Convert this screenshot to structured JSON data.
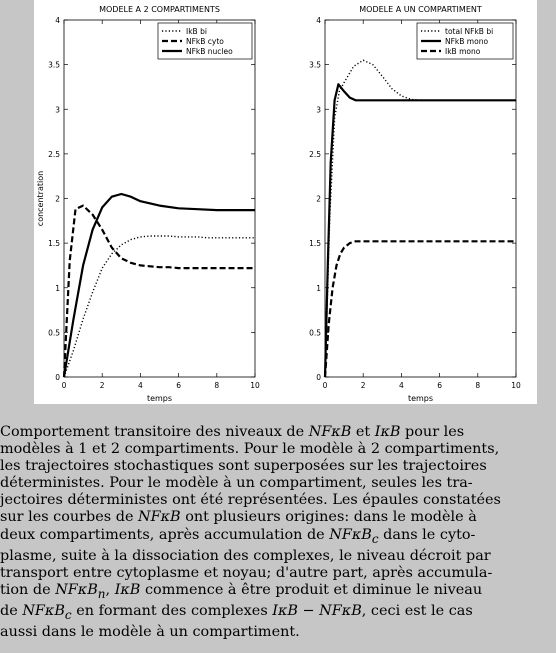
{
  "figure": {
    "panels": [
      {
        "title": "MODELE A 2 COMPARTIMENTS",
        "xlabel": "temps",
        "ylabel": "concentration",
        "legend": [
          "IkB bi",
          "NFkB cyto",
          "NFkB nucleo"
        ],
        "xticks": [
          "0",
          "2",
          "4",
          "6",
          "8",
          "10"
        ],
        "yticks": [
          "0",
          "0.5",
          "1",
          "1.5",
          "2",
          "2.5",
          "3",
          "3.5",
          "4"
        ]
      },
      {
        "title": "MODELE A UN COMPARTIMENT",
        "xlabel": "temps",
        "legend": [
          "total NFkB bi",
          "NFkB mono",
          "IkB mono"
        ],
        "xticks": [
          "0",
          "2",
          "4",
          "6",
          "8",
          "10"
        ],
        "yticks": [
          "0",
          "0.5",
          "1",
          "1.5",
          "2",
          "2.5",
          "3",
          "3.5",
          "4"
        ]
      }
    ]
  },
  "chart_data": [
    {
      "type": "line",
      "title": "MODELE A 2 COMPARTIMENTS",
      "xlabel": "temps",
      "ylabel": "concentration",
      "xlim": [
        0,
        10
      ],
      "ylim": [
        0,
        4
      ],
      "legend_position": "top-right",
      "series": [
        {
          "name": "IkB bi",
          "style": "dotted",
          "x": [
            0,
            0.5,
            1,
            1.5,
            2,
            2.5,
            3,
            3.5,
            4,
            4.5,
            5,
            5.5,
            6,
            6.5,
            7,
            7.5,
            8,
            8.5,
            9,
            9.5,
            10
          ],
          "y": [
            0,
            0.3,
            0.65,
            0.95,
            1.22,
            1.38,
            1.48,
            1.54,
            1.57,
            1.58,
            1.58,
            1.58,
            1.57,
            1.57,
            1.57,
            1.56,
            1.56,
            1.56,
            1.56,
            1.56,
            1.56
          ]
        },
        {
          "name": "NFkB cyto",
          "style": "dashed",
          "x": [
            0,
            0.3,
            0.6,
            1,
            1.5,
            2,
            2.5,
            3,
            3.5,
            4,
            4.5,
            5,
            5.5,
            6,
            7,
            8,
            9,
            10
          ],
          "y": [
            0,
            1.3,
            1.88,
            1.92,
            1.82,
            1.65,
            1.45,
            1.33,
            1.28,
            1.25,
            1.24,
            1.23,
            1.23,
            1.22,
            1.22,
            1.22,
            1.22,
            1.22
          ]
        },
        {
          "name": "NFkB nucleo",
          "style": "solid",
          "x": [
            0,
            0.5,
            1,
            1.5,
            2,
            2.5,
            3,
            3.5,
            4,
            5,
            6,
            7,
            8,
            9,
            10
          ],
          "y": [
            0,
            0.65,
            1.25,
            1.65,
            1.9,
            2.02,
            2.05,
            2.02,
            1.97,
            1.92,
            1.89,
            1.88,
            1.87,
            1.87,
            1.87
          ]
        }
      ]
    },
    {
      "type": "line",
      "title": "MODELE A UN COMPARTIMENT",
      "xlabel": "temps",
      "xlim": [
        0,
        10
      ],
      "ylim": [
        0,
        4
      ],
      "legend_position": "top-right",
      "series": [
        {
          "name": "total NFkB bi",
          "style": "dotted",
          "x": [
            0,
            0.25,
            0.5,
            0.75,
            1,
            1.5,
            2,
            2.5,
            3,
            3.5,
            4,
            4.5,
            5,
            6,
            7,
            8,
            9,
            10
          ],
          "y": [
            0,
            1.8,
            2.9,
            3.2,
            3.3,
            3.48,
            3.55,
            3.5,
            3.37,
            3.23,
            3.15,
            3.11,
            3.1,
            3.1,
            3.1,
            3.1,
            3.1,
            3.1
          ]
        },
        {
          "name": "NFkB mono",
          "style": "solid",
          "x": [
            0,
            0.15,
            0.3,
            0.5,
            0.7,
            1,
            1.3,
            1.6,
            2,
            3,
            4,
            6,
            8,
            10
          ],
          "y": [
            0,
            1.3,
            2.4,
            3.1,
            3.28,
            3.2,
            3.13,
            3.1,
            3.1,
            3.1,
            3.1,
            3.1,
            3.1,
            3.1
          ]
        },
        {
          "name": "IkB mono",
          "style": "dashed",
          "x": [
            0,
            0.2,
            0.4,
            0.6,
            0.8,
            1,
            1.3,
            1.6,
            2,
            3,
            4,
            6,
            8,
            10
          ],
          "y": [
            0,
            0.6,
            1.0,
            1.25,
            1.38,
            1.45,
            1.5,
            1.52,
            1.52,
            1.52,
            1.52,
            1.52,
            1.52,
            1.52
          ]
        }
      ]
    }
  ],
  "caption": {
    "l1a": "Comportement transitoire des niveaux de ",
    "m1": "NFκB",
    "l1b": " et ",
    "m2": "IκB",
    "l1c": " pour les",
    "l2": "modèles à 1 et 2 compartiments. Pour le modèle à 2 compartiments,",
    "l3": "les trajectoires stochastiques sont superposées sur les trajectoires",
    "l4": "déterministes.  Pour le modèle à un compartiment, seules les tra-",
    "l5": "jectoires déterministes ont été représentées. Les épaules constatées",
    "l6a": "sur les courbes de ",
    "m3": "NFκB",
    "l6b": " ont plusieurs origines: dans le modèle à",
    "l7a": "deux compartiments, après accumulation de ",
    "m4": "NFκB",
    "s4": "c",
    "l7b": " dans le cyto-",
    "l8": "plasme, suite à la dissociation des complexes, le niveau décroit par",
    "l9": "transport entre cytoplasme et noyau; d'autre part, après accumula-",
    "l10a": "tion de ",
    "m5": "NFκB",
    "s5": "n",
    "l10b": ", ",
    "m6": "IκB",
    "l10c": " commence à être produit et diminue le niveau",
    "l11a": "de ",
    "m7": "NFκB",
    "s7": "c",
    "l11b": " en formant des complexes ",
    "m8": "IκB − NFκB",
    "l11c": ", ceci est le cas",
    "l12": "aussi dans le modèle à un compartiment."
  }
}
